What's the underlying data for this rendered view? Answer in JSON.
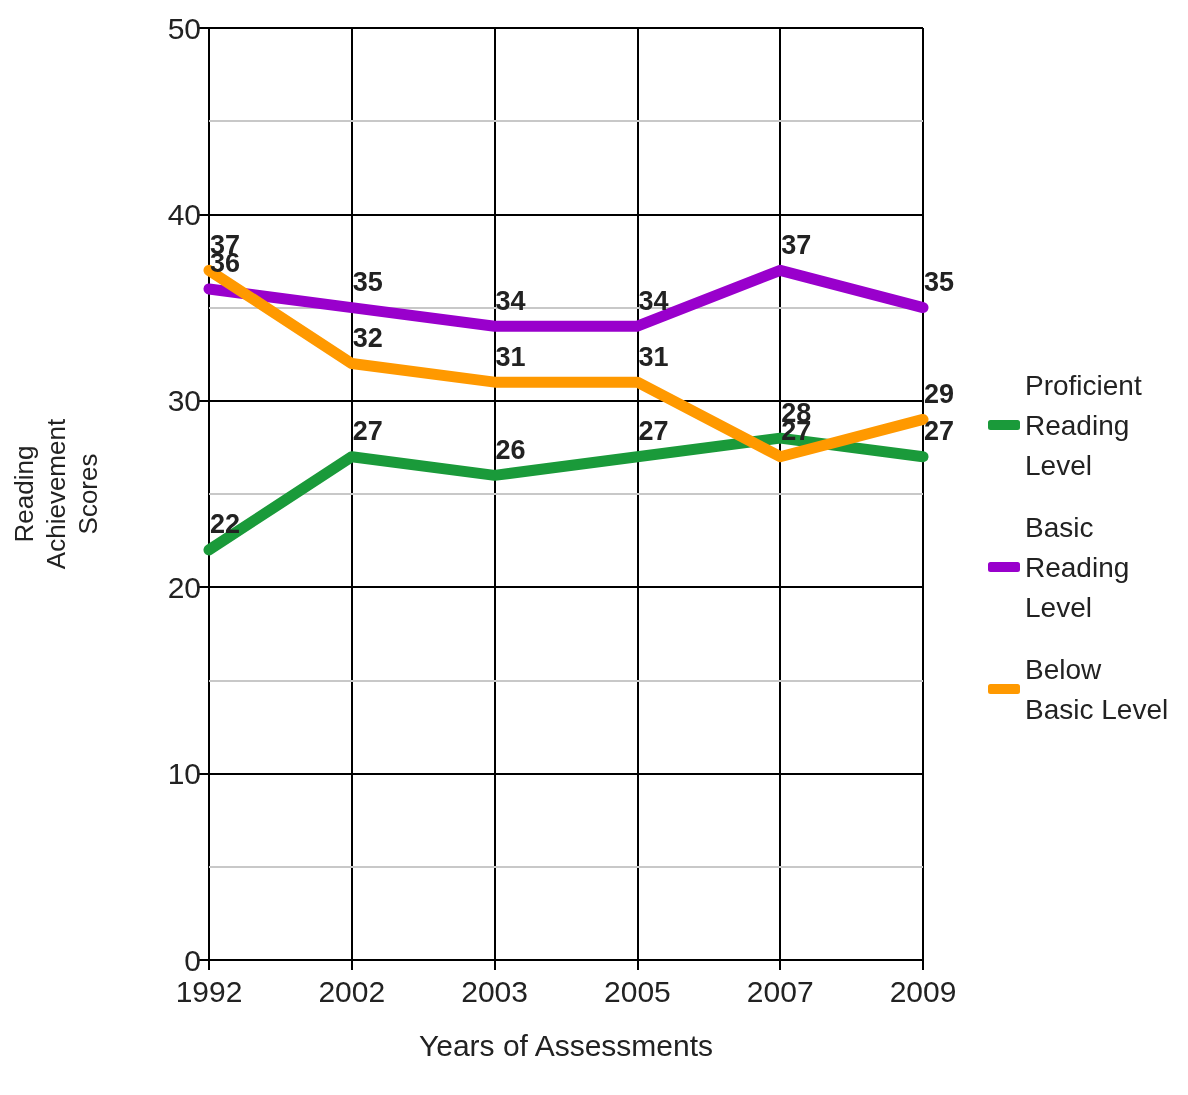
{
  "chart_data": {
    "type": "line",
    "xlabel": "Years of Assessments",
    "ylabel": "Reading Achievement Scores",
    "categories": [
      "1992",
      "2002",
      "2003",
      "2005",
      "2007",
      "2009"
    ],
    "series": [
      {
        "name": "Proficient Reading Level",
        "color": "#1a9a3a",
        "values": [
          22,
          27,
          26,
          27,
          28,
          27
        ]
      },
      {
        "name": "Basic Reading Level",
        "color": "#9900cc",
        "values": [
          36,
          35,
          34,
          34,
          37,
          35
        ]
      },
      {
        "name": "Below Basic Level",
        "color": "#ff9900",
        "values": [
          37,
          32,
          31,
          31,
          27,
          29
        ]
      }
    ],
    "ylim": [
      0,
      50
    ],
    "yticks": [
      0,
      {
        "value": 5,
        "label": null
      },
      10,
      {
        "value": 15,
        "label": null
      },
      20,
      {
        "value": 25,
        "label": null
      },
      30,
      {
        "value": 35,
        "label": null
      },
      40,
      {
        "value": 45,
        "label": null
      },
      50
    ],
    "grid": true,
    "legend": "right",
    "data_labels": true,
    "marker": "none",
    "line_style": "solid"
  }
}
